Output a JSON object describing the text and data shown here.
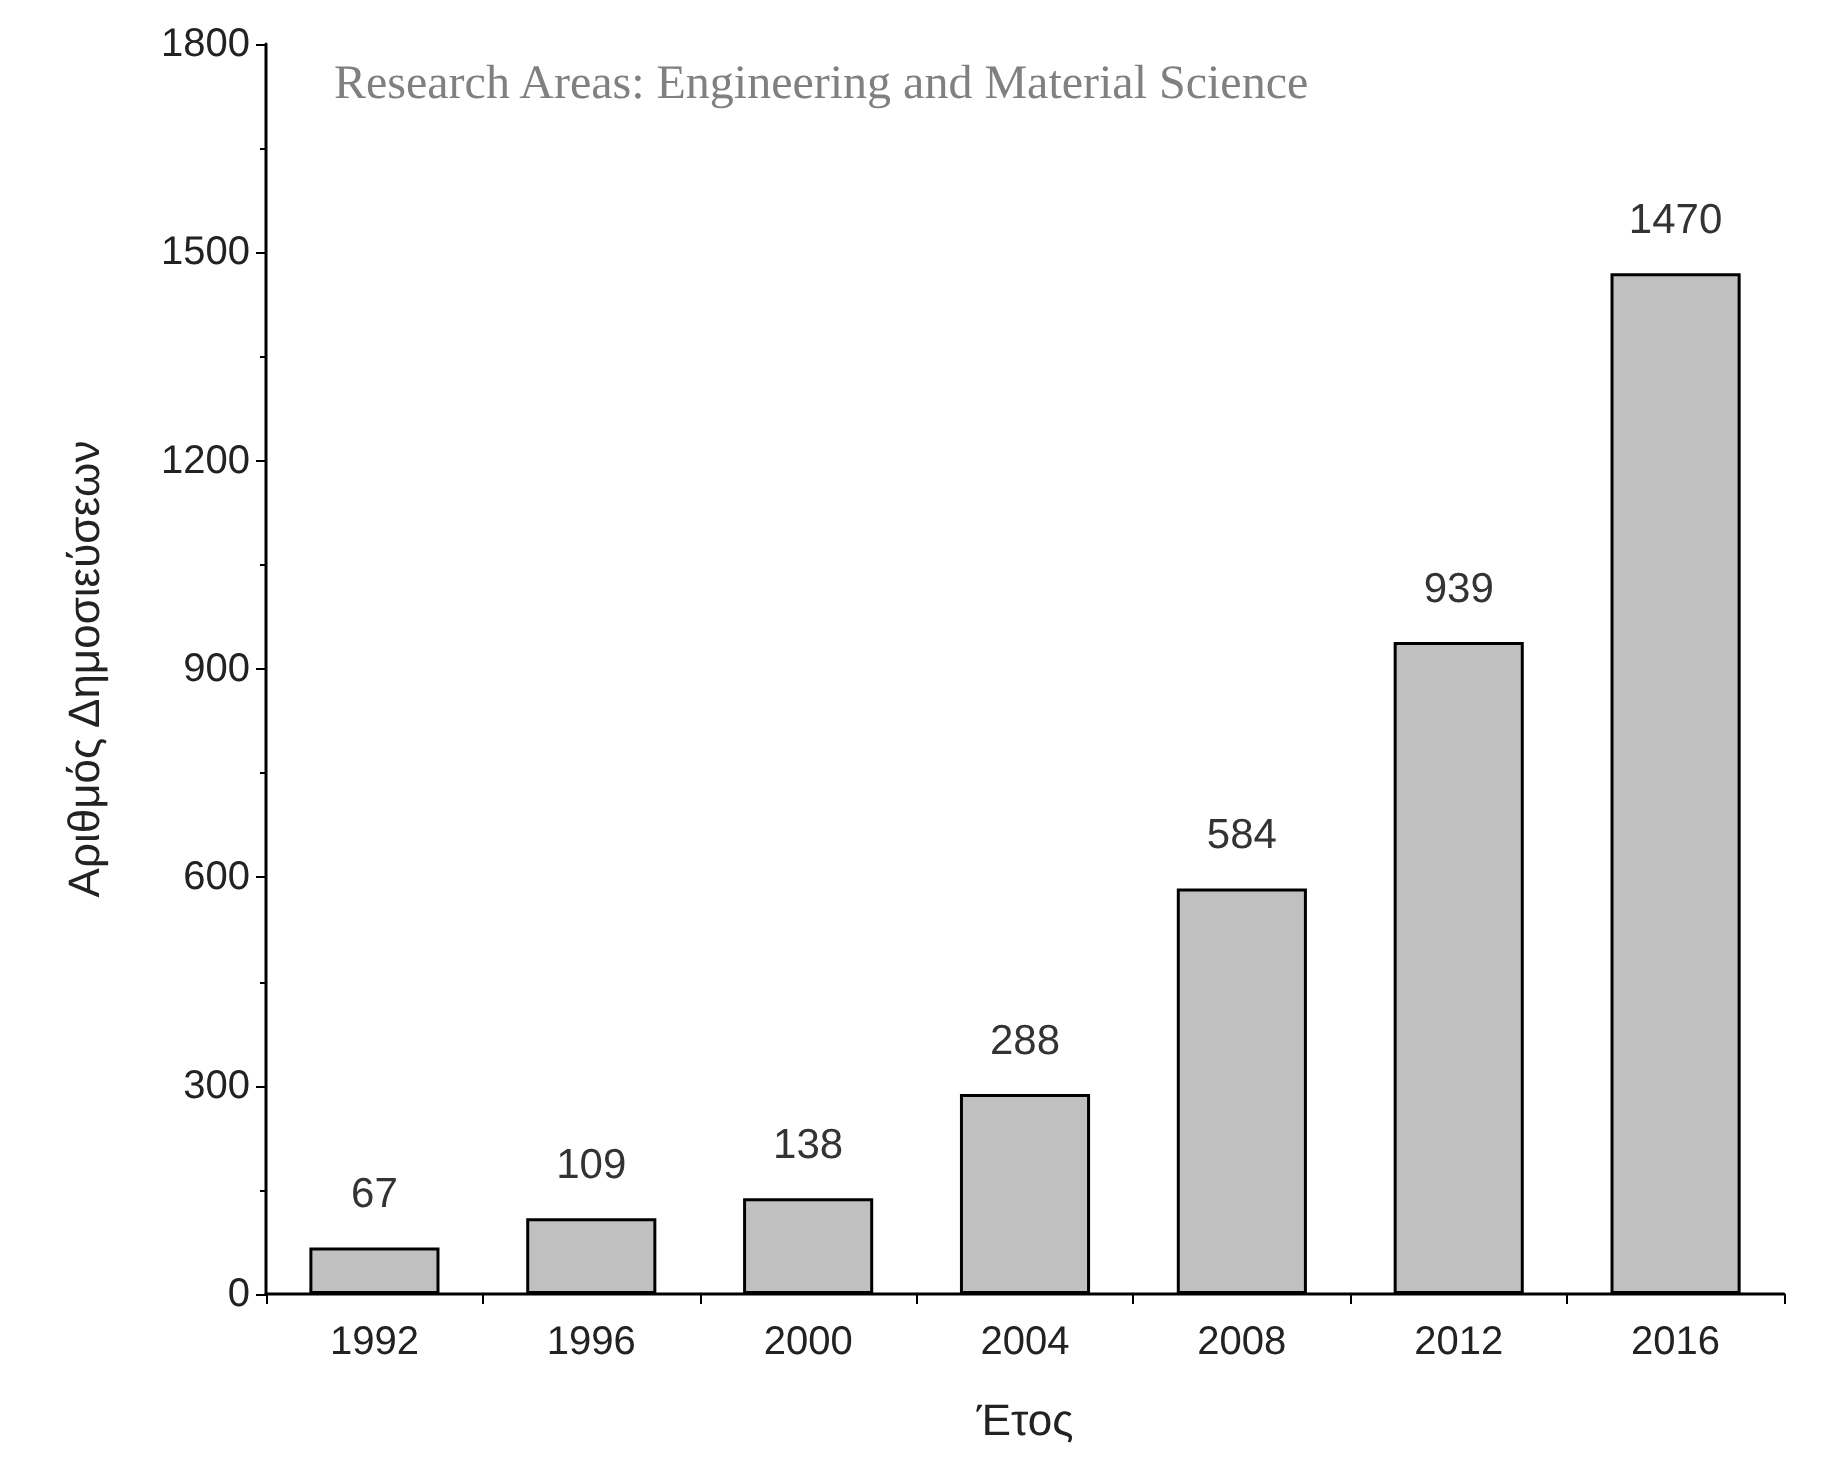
{
  "chart_data": {
    "type": "bar",
    "xlabel": "Έτος",
    "ylabel": "Αριθμός Δημοσιεύσεων",
    "categories": [
      "1992",
      "1996",
      "2000",
      "2004",
      "2008",
      "2012",
      "2016"
    ],
    "values": [
      67,
      109,
      138,
      288,
      584,
      939,
      1470
    ],
    "color": "#c0c0c0",
    "ylim": [
      0,
      1800
    ],
    "yticks": [
      0,
      300,
      600,
      900,
      1200,
      1500,
      1800
    ],
    "data_labels": true,
    "grid": false,
    "annotations": [
      "Research Areas: Engineering and Material Science"
    ]
  }
}
